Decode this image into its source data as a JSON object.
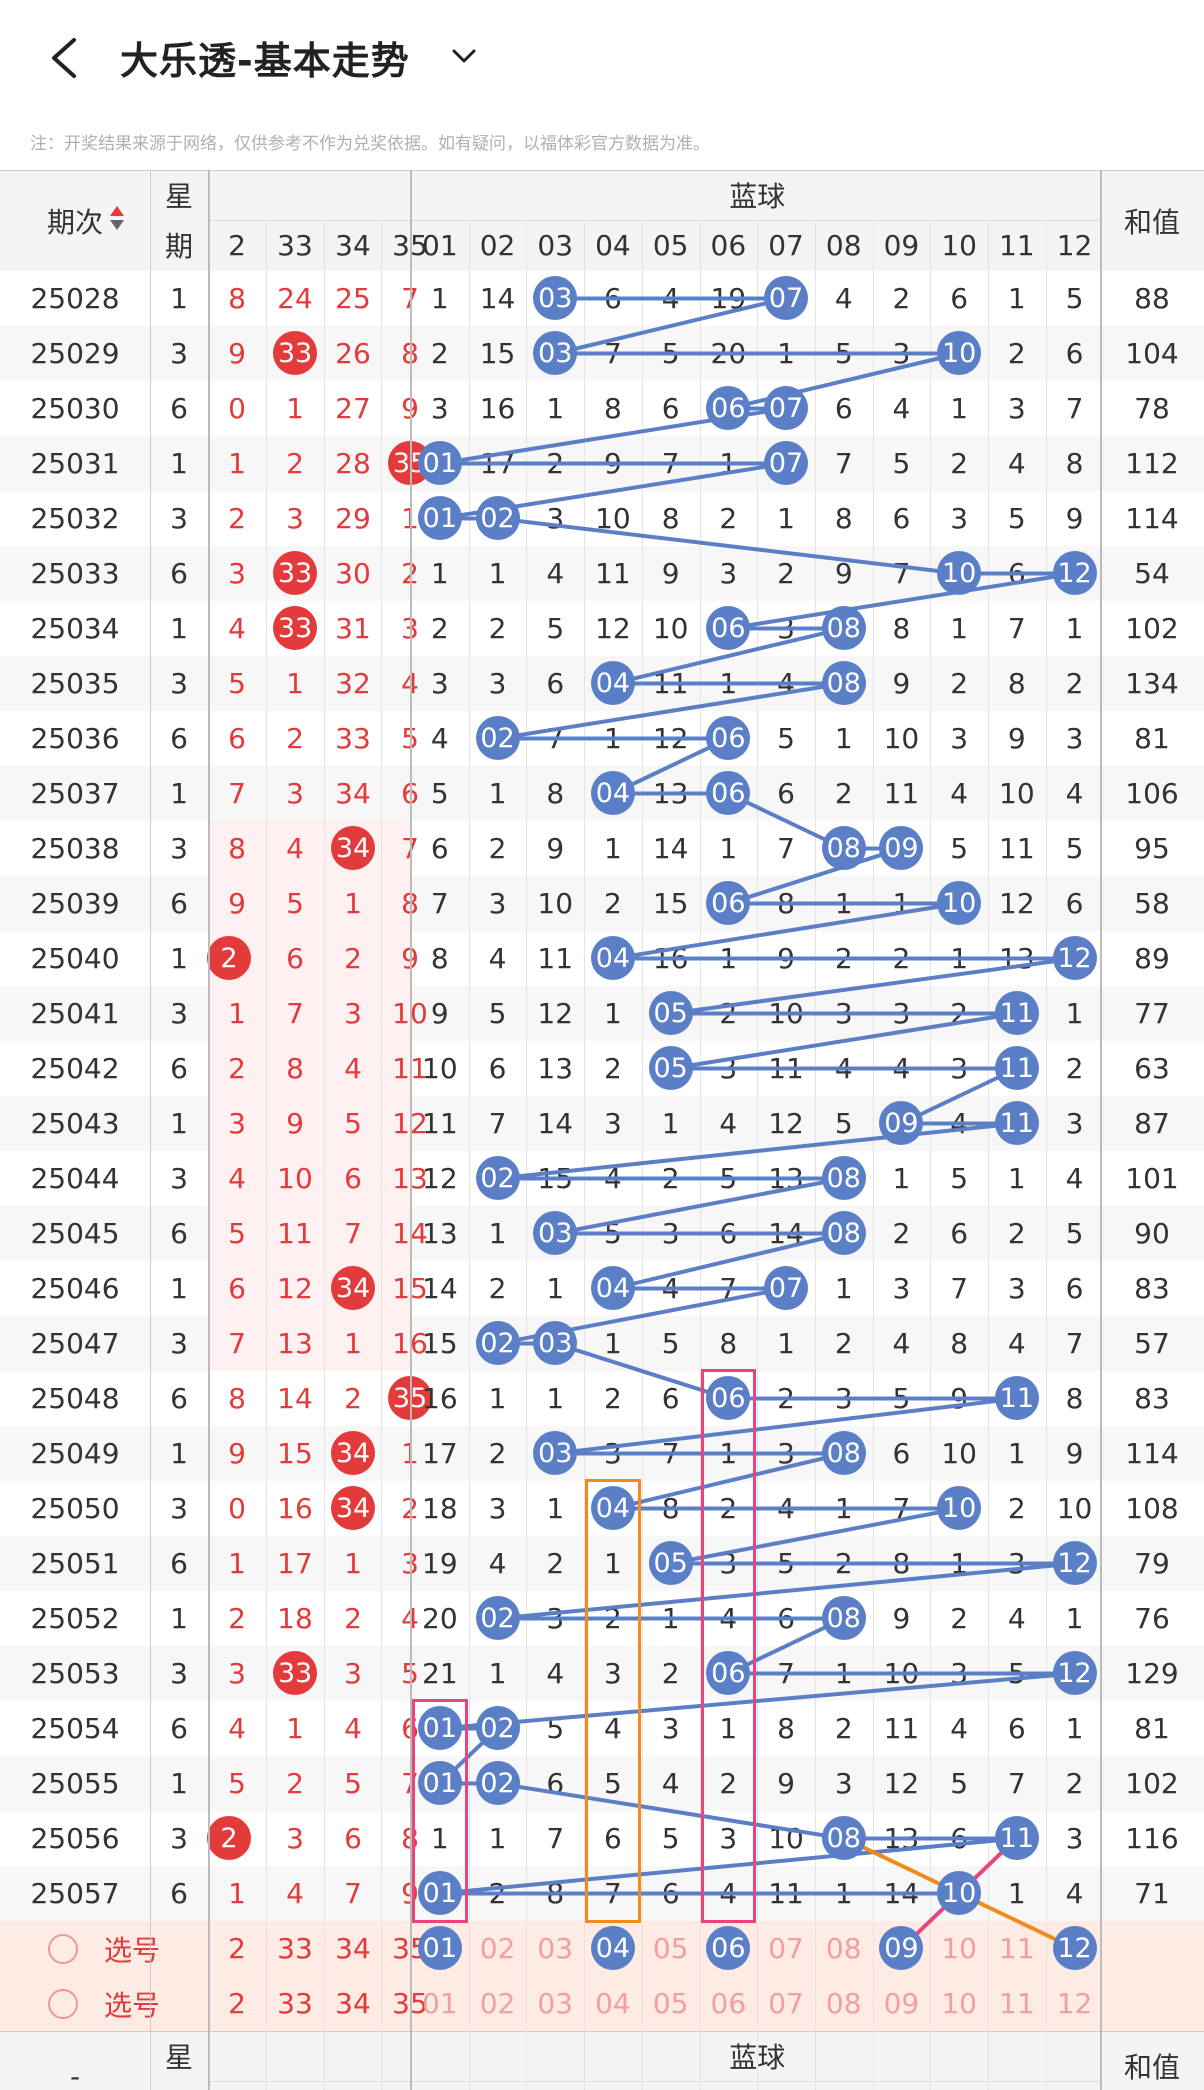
{
  "header": {
    "title": "大乐透-基本走势"
  },
  "notice": "注：开奖结果来源于网络，仅供参考不作为兑奖依据。如有疑问，以福体彩官方数据为准。",
  "table_header": {
    "period": "期次",
    "weekday": "星期",
    "blue_group": "蓝球",
    "sum": "和值",
    "red_cols": [
      "2",
      "33",
      "34",
      "35"
    ],
    "blue_cols": [
      "01",
      "02",
      "03",
      "04",
      "05",
      "06",
      "07",
      "08",
      "09",
      "10",
      "11",
      "12"
    ],
    "bottom_weekday": "星",
    "bottom_blue_group": "蓝球",
    "bottom_sum": "和值",
    "bottom_period": "-"
  },
  "rows": [
    {
      "period": "25028",
      "wd": "1",
      "r": [
        "8",
        "24",
        "25",
        "7"
      ],
      "redhit": [],
      "b": [
        "1",
        "14",
        "03",
        "6",
        "4",
        "19",
        "07",
        "4",
        "2",
        "6",
        "1",
        "5"
      ],
      "bh": [
        3,
        7
      ],
      "sum": "88"
    },
    {
      "period": "25029",
      "wd": "3",
      "r": [
        "9",
        "33",
        "26",
        "8"
      ],
      "redhit": [
        1
      ],
      "b": [
        "2",
        "15",
        "03",
        "7",
        "5",
        "20",
        "1",
        "5",
        "3",
        "10",
        "2",
        "6"
      ],
      "bh": [
        3,
        10
      ],
      "sum": "104"
    },
    {
      "period": "25030",
      "wd": "6",
      "r": [
        "0",
        "1",
        "27",
        "9"
      ],
      "redhit": [],
      "b": [
        "3",
        "16",
        "1",
        "8",
        "6",
        "06",
        "07",
        "6",
        "4",
        "1",
        "3",
        "7"
      ],
      "bh": [
        6,
        7
      ],
      "sum": "78"
    },
    {
      "period": "25031",
      "wd": "1",
      "r": [
        "1",
        "2",
        "28",
        "35"
      ],
      "redhit": [
        3
      ],
      "b": [
        "01",
        "17",
        "2",
        "9",
        "7",
        "1",
        "07",
        "7",
        "5",
        "2",
        "4",
        "8"
      ],
      "bh": [
        1,
        7
      ],
      "sum": "112"
    },
    {
      "period": "25032",
      "wd": "3",
      "r": [
        "2",
        "3",
        "29",
        "1"
      ],
      "redhit": [],
      "b": [
        "01",
        "02",
        "3",
        "10",
        "8",
        "2",
        "1",
        "8",
        "6",
        "3",
        "5",
        "9"
      ],
      "bh": [
        1,
        2
      ],
      "sum": "114"
    },
    {
      "period": "25033",
      "wd": "6",
      "r": [
        "3",
        "33",
        "30",
        "2"
      ],
      "redhit": [
        1
      ],
      "b": [
        "1",
        "1",
        "4",
        "11",
        "9",
        "3",
        "2",
        "9",
        "7",
        "10",
        "6",
        "12"
      ],
      "bh": [
        10,
        12
      ],
      "sum": "54"
    },
    {
      "period": "25034",
      "wd": "1",
      "r": [
        "4",
        "33",
        "31",
        "3"
      ],
      "redhit": [
        1
      ],
      "b": [
        "2",
        "2",
        "5",
        "12",
        "10",
        "06",
        "3",
        "08",
        "8",
        "1",
        "7",
        "1"
      ],
      "bh": [
        6,
        8
      ],
      "sum": "102"
    },
    {
      "period": "25035",
      "wd": "3",
      "r": [
        "5",
        "1",
        "32",
        "4"
      ],
      "redhit": [],
      "b": [
        "3",
        "3",
        "6",
        "04",
        "11",
        "1",
        "4",
        "08",
        "9",
        "2",
        "8",
        "2"
      ],
      "bh": [
        4,
        8
      ],
      "sum": "134"
    },
    {
      "period": "25036",
      "wd": "6",
      "r": [
        "6",
        "2",
        "33",
        "5"
      ],
      "redhit": [],
      "b": [
        "4",
        "02",
        "7",
        "1",
        "12",
        "06",
        "5",
        "1",
        "10",
        "3",
        "9",
        "3"
      ],
      "bh": [
        2,
        6
      ],
      "sum": "81"
    },
    {
      "period": "25037",
      "wd": "1",
      "r": [
        "7",
        "3",
        "34",
        "6"
      ],
      "redhit": [],
      "b": [
        "5",
        "1",
        "8",
        "04",
        "13",
        "06",
        "6",
        "2",
        "11",
        "4",
        "10",
        "4"
      ],
      "bh": [
        4,
        6
      ],
      "sum": "106"
    },
    {
      "period": "25038",
      "wd": "3",
      "r": [
        "8",
        "4",
        "34",
        "7"
      ],
      "redhit": [
        2
      ],
      "b": [
        "6",
        "2",
        "9",
        "1",
        "14",
        "1",
        "7",
        "08",
        "09",
        "5",
        "11",
        "5"
      ],
      "bh": [
        8,
        9
      ],
      "sum": "95"
    },
    {
      "period": "25039",
      "wd": "6",
      "r": [
        "9",
        "5",
        "1",
        "8"
      ],
      "redhit": [],
      "b": [
        "7",
        "3",
        "10",
        "2",
        "15",
        "06",
        "8",
        "1",
        "1",
        "10",
        "12",
        "6"
      ],
      "bh": [
        6,
        10
      ],
      "sum": "58"
    },
    {
      "period": "25040",
      "wd": "1",
      "r": [
        "2",
        "6",
        "2",
        "9"
      ],
      "redhit": [
        0
      ],
      "b": [
        "8",
        "4",
        "11",
        "04",
        "16",
        "1",
        "9",
        "2",
        "2",
        "1",
        "13",
        "12"
      ],
      "bh": [
        4,
        12
      ],
      "sum": "89"
    },
    {
      "period": "25041",
      "wd": "3",
      "r": [
        "1",
        "7",
        "3",
        "10"
      ],
      "redhit": [],
      "b": [
        "9",
        "5",
        "12",
        "1",
        "05",
        "2",
        "10",
        "3",
        "3",
        "2",
        "11",
        "1"
      ],
      "bh": [
        5,
        11
      ],
      "sum": "77"
    },
    {
      "period": "25042",
      "wd": "6",
      "r": [
        "2",
        "8",
        "4",
        "11"
      ],
      "redhit": [],
      "b": [
        "10",
        "6",
        "13",
        "2",
        "05",
        "3",
        "11",
        "4",
        "4",
        "3",
        "11",
        "2"
      ],
      "bh": [
        5,
        11
      ],
      "sum": "63"
    },
    {
      "period": "25043",
      "wd": "1",
      "r": [
        "3",
        "9",
        "5",
        "12"
      ],
      "redhit": [],
      "b": [
        "11",
        "7",
        "14",
        "3",
        "1",
        "4",
        "12",
        "5",
        "09",
        "4",
        "11",
        "3"
      ],
      "bh": [
        9,
        11
      ],
      "sum": "87"
    },
    {
      "period": "25044",
      "wd": "3",
      "r": [
        "4",
        "10",
        "6",
        "13"
      ],
      "redhit": [],
      "b": [
        "12",
        "02",
        "15",
        "4",
        "2",
        "5",
        "13",
        "08",
        "1",
        "5",
        "1",
        "4"
      ],
      "bh": [
        2,
        8
      ],
      "sum": "101"
    },
    {
      "period": "25045",
      "wd": "6",
      "r": [
        "5",
        "11",
        "7",
        "14"
      ],
      "redhit": [],
      "b": [
        "13",
        "1",
        "03",
        "5",
        "3",
        "6",
        "14",
        "08",
        "2",
        "6",
        "2",
        "5"
      ],
      "bh": [
        3,
        8
      ],
      "sum": "90"
    },
    {
      "period": "25046",
      "wd": "1",
      "r": [
        "6",
        "12",
        "34",
        "15"
      ],
      "redhit": [
        2
      ],
      "b": [
        "14",
        "2",
        "1",
        "04",
        "4",
        "7",
        "07",
        "1",
        "3",
        "7",
        "3",
        "6"
      ],
      "bh": [
        4,
        7
      ],
      "sum": "83"
    },
    {
      "period": "25047",
      "wd": "3",
      "r": [
        "7",
        "13",
        "1",
        "16"
      ],
      "redhit": [],
      "b": [
        "15",
        "02",
        "03",
        "1",
        "5",
        "8",
        "1",
        "2",
        "4",
        "8",
        "4",
        "7"
      ],
      "bh": [
        2,
        3
      ],
      "sum": "57"
    },
    {
      "period": "25048",
      "wd": "6",
      "r": [
        "8",
        "14",
        "2",
        "35"
      ],
      "redhit": [
        3
      ],
      "b": [
        "16",
        "1",
        "1",
        "2",
        "6",
        "06",
        "2",
        "3",
        "5",
        "9",
        "11",
        "8"
      ],
      "bh": [
        6,
        11
      ],
      "sum": "83"
    },
    {
      "period": "25049",
      "wd": "1",
      "r": [
        "9",
        "15",
        "34",
        "1"
      ],
      "redhit": [
        2
      ],
      "b": [
        "17",
        "2",
        "03",
        "3",
        "7",
        "1",
        "3",
        "08",
        "6",
        "10",
        "1",
        "9"
      ],
      "bh": [
        3,
        8
      ],
      "sum": "114"
    },
    {
      "period": "25050",
      "wd": "3",
      "r": [
        "0",
        "16",
        "34",
        "2"
      ],
      "redhit": [
        2
      ],
      "b": [
        "18",
        "3",
        "1",
        "04",
        "8",
        "2",
        "4",
        "1",
        "7",
        "10",
        "2",
        "10"
      ],
      "bh": [
        4,
        10
      ],
      "sum": "108"
    },
    {
      "period": "25051",
      "wd": "6",
      "r": [
        "1",
        "17",
        "1",
        "3"
      ],
      "redhit": [],
      "b": [
        "19",
        "4",
        "2",
        "1",
        "05",
        "3",
        "5",
        "2",
        "8",
        "1",
        "3",
        "12"
      ],
      "bh": [
        5,
        12
      ],
      "sum": "79"
    },
    {
      "period": "25052",
      "wd": "1",
      "r": [
        "2",
        "18",
        "2",
        "4"
      ],
      "redhit": [],
      "b": [
        "20",
        "02",
        "3",
        "2",
        "1",
        "4",
        "6",
        "08",
        "9",
        "2",
        "4",
        "1"
      ],
      "bh": [
        2,
        8
      ],
      "sum": "76"
    },
    {
      "period": "25053",
      "wd": "3",
      "r": [
        "3",
        "33",
        "3",
        "5"
      ],
      "redhit": [
        1
      ],
      "b": [
        "21",
        "1",
        "4",
        "3",
        "2",
        "06",
        "7",
        "1",
        "10",
        "3",
        "5",
        "12"
      ],
      "bh": [
        6,
        12
      ],
      "sum": "129"
    },
    {
      "period": "25054",
      "wd": "6",
      "r": [
        "4",
        "1",
        "4",
        "6"
      ],
      "redhit": [],
      "b": [
        "01",
        "02",
        "5",
        "4",
        "3",
        "1",
        "8",
        "2",
        "11",
        "4",
        "6",
        "1"
      ],
      "bh": [
        1,
        2
      ],
      "sum": "81"
    },
    {
      "period": "25055",
      "wd": "1",
      "r": [
        "5",
        "2",
        "5",
        "7"
      ],
      "redhit": [],
      "b": [
        "01",
        "02",
        "6",
        "5",
        "4",
        "2",
        "9",
        "3",
        "12",
        "5",
        "7",
        "2"
      ],
      "bh": [
        1,
        2
      ],
      "sum": "102"
    },
    {
      "period": "25056",
      "wd": "3",
      "r": [
        "2",
        "3",
        "6",
        "8"
      ],
      "redhit": [
        0
      ],
      "b": [
        "1",
        "1",
        "7",
        "6",
        "5",
        "3",
        "10",
        "08",
        "13",
        "6",
        "11",
        "3"
      ],
      "bh": [
        8,
        11
      ],
      "sum": "116"
    },
    {
      "period": "25057",
      "wd": "6",
      "r": [
        "1",
        "4",
        "7",
        "9"
      ],
      "redhit": [],
      "b": [
        "01",
        "2",
        "8",
        "7",
        "6",
        "4",
        "11",
        "1",
        "14",
        "10",
        "1",
        "4"
      ],
      "bh": [
        1,
        10
      ],
      "sum": "71"
    }
  ],
  "select_rows": [
    {
      "label": "选号",
      "r": [
        "2",
        "33",
        "34",
        "35"
      ],
      "b": [
        "01",
        "02",
        "03",
        "04",
        "05",
        "06",
        "07",
        "08",
        "09",
        "10",
        "11",
        "12"
      ],
      "bh": [
        1,
        4,
        6,
        9,
        12
      ]
    },
    {
      "label": "选号",
      "r": [
        "2",
        "33",
        "34",
        "35"
      ],
      "b": [
        "01",
        "02",
        "03",
        "04",
        "05",
        "06",
        "07",
        "08",
        "09",
        "10",
        "11",
        "12"
      ],
      "bh": []
    }
  ],
  "colors": {
    "red": "#e33b3b",
    "blue_ball": "#5b7fc6",
    "pink_box": "#e8457e",
    "orange_box": "#f08a1c",
    "select_bg": "#fdebe4"
  }
}
